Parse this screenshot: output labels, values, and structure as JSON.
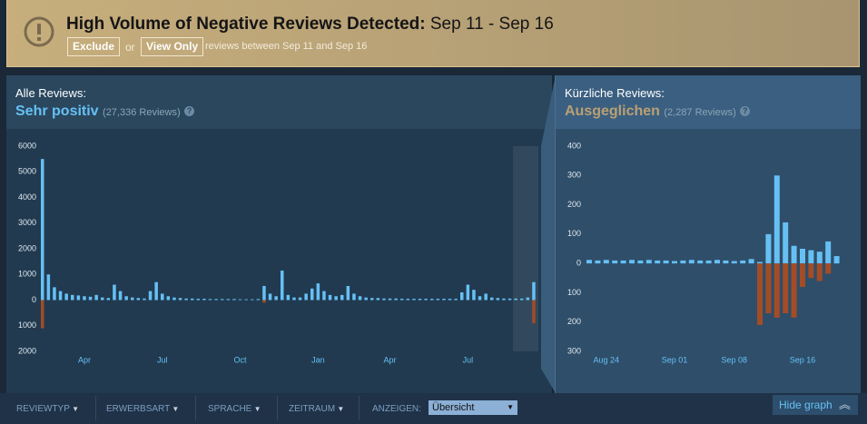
{
  "banner": {
    "title": "High Volume of Negative Reviews Detected:",
    "dates": "Sep 11 - Sep 16",
    "exclude": "Exclude",
    "or": "or",
    "view_only": "View Only",
    "note": "reviews between Sep 11 and Sep 16"
  },
  "chart_data": [
    {
      "type": "bar",
      "heading": "Alle Reviews:",
      "rating": "Sehr positiv",
      "count": "(27,336 Reviews)",
      "help": "?",
      "categories": [
        null,
        null,
        null,
        null,
        null,
        null,
        null,
        "Apr",
        null,
        null,
        null,
        null,
        null,
        null,
        null,
        null,
        null,
        null,
        null,
        null,
        "Jul",
        null,
        null,
        null,
        null,
        null,
        null,
        null,
        null,
        null,
        null,
        null,
        null,
        "Oct",
        null,
        null,
        null,
        null,
        null,
        null,
        null,
        null,
        null,
        null,
        null,
        null,
        "Jan",
        null,
        null,
        null,
        null,
        null,
        null,
        null,
        null,
        null,
        null,
        null,
        "Apr",
        null,
        null,
        null,
        null,
        null,
        null,
        null,
        null,
        null,
        null,
        null,
        null,
        "Jul",
        null,
        null,
        null,
        null,
        null,
        null,
        null,
        null,
        null,
        null,
        null
      ],
      "series": [
        {
          "color": "#66c0f4",
          "values": [
            5500,
            1000,
            500,
            350,
            250,
            200,
            180,
            150,
            130,
            200,
            100,
            80,
            600,
            350,
            150,
            100,
            80,
            60,
            350,
            700,
            250,
            150,
            100,
            80,
            60,
            60,
            50,
            50,
            40,
            40,
            40,
            40,
            40,
            30,
            30,
            30,
            40,
            550,
            250,
            150,
            1150,
            200,
            100,
            100,
            250,
            450,
            650,
            350,
            200,
            150,
            200,
            550,
            250,
            150,
            100,
            80,
            80,
            60,
            60,
            60,
            50,
            50,
            50,
            50,
            50,
            50,
            50,
            50,
            50,
            50,
            300,
            600,
            400,
            150,
            250,
            100,
            80,
            60,
            60,
            60,
            60,
            100,
            700
          ]
        },
        {
          "color": "#a34c25",
          "values": [
            -1100,
            0,
            0,
            0,
            0,
            0,
            0,
            0,
            0,
            0,
            0,
            0,
            0,
            0,
            0,
            0,
            0,
            0,
            0,
            0,
            0,
            0,
            0,
            0,
            0,
            0,
            0,
            0,
            0,
            0,
            0,
            0,
            0,
            0,
            0,
            0,
            0,
            -100,
            0,
            0,
            0,
            0,
            0,
            0,
            0,
            0,
            0,
            0,
            0,
            0,
            0,
            0,
            0,
            0,
            0,
            0,
            0,
            0,
            0,
            0,
            0,
            0,
            0,
            0,
            0,
            0,
            0,
            0,
            0,
            0,
            0,
            0,
            0,
            0,
            0,
            0,
            0,
            0,
            0,
            0,
            0,
            0,
            -900
          ]
        }
      ],
      "ylim": [
        -2000,
        6000
      ],
      "yticks": [
        6000,
        5000,
        4000,
        3000,
        2000,
        1000,
        0,
        {
          "value": -1000,
          "label": "1000"
        },
        {
          "value": -2000,
          "label": "2000"
        }
      ]
    },
    {
      "type": "bar",
      "heading": "Kürzliche Reviews:",
      "rating": "Ausgeglichen",
      "count": "(2,287 Reviews)",
      "help": "?",
      "categories": [
        null,
        null,
        "Aug 24",
        null,
        null,
        null,
        null,
        null,
        null,
        null,
        "Sep 01",
        null,
        null,
        null,
        null,
        null,
        null,
        "Sep 08",
        null,
        null,
        null,
        null,
        null,
        null,
        null,
        "Sep 16",
        null,
        null,
        null,
        null
      ],
      "series": [
        {
          "color": "#66c0f4",
          "values": [
            12,
            10,
            12,
            10,
            10,
            12,
            10,
            12,
            10,
            10,
            8,
            10,
            12,
            10,
            10,
            12,
            10,
            8,
            10,
            15,
            5,
            100,
            300,
            140,
            60,
            50,
            45,
            40,
            75,
            25
          ]
        },
        {
          "color": "#a34c25",
          "values": [
            0,
            0,
            0,
            0,
            0,
            0,
            0,
            0,
            0,
            0,
            0,
            0,
            0,
            0,
            0,
            0,
            0,
            0,
            0,
            0,
            -210,
            -170,
            -185,
            -170,
            -185,
            -80,
            -50,
            -60,
            -35,
            0
          ]
        }
      ],
      "ylim": [
        -300,
        400
      ],
      "yticks": [
        400,
        300,
        200,
        100,
        0,
        {
          "value": -100,
          "label": "100"
        },
        {
          "value": -200,
          "label": "200"
        },
        {
          "value": -300,
          "label": "300"
        }
      ]
    }
  ],
  "filters": {
    "items": [
      "REVIEWTYP",
      "ERWERBSART",
      "SPRACHE",
      "ZEITRAUM"
    ],
    "show_label": "ANZEIGEN:",
    "show_value": "Übersicht",
    "hide_graph": "Hide graph"
  }
}
